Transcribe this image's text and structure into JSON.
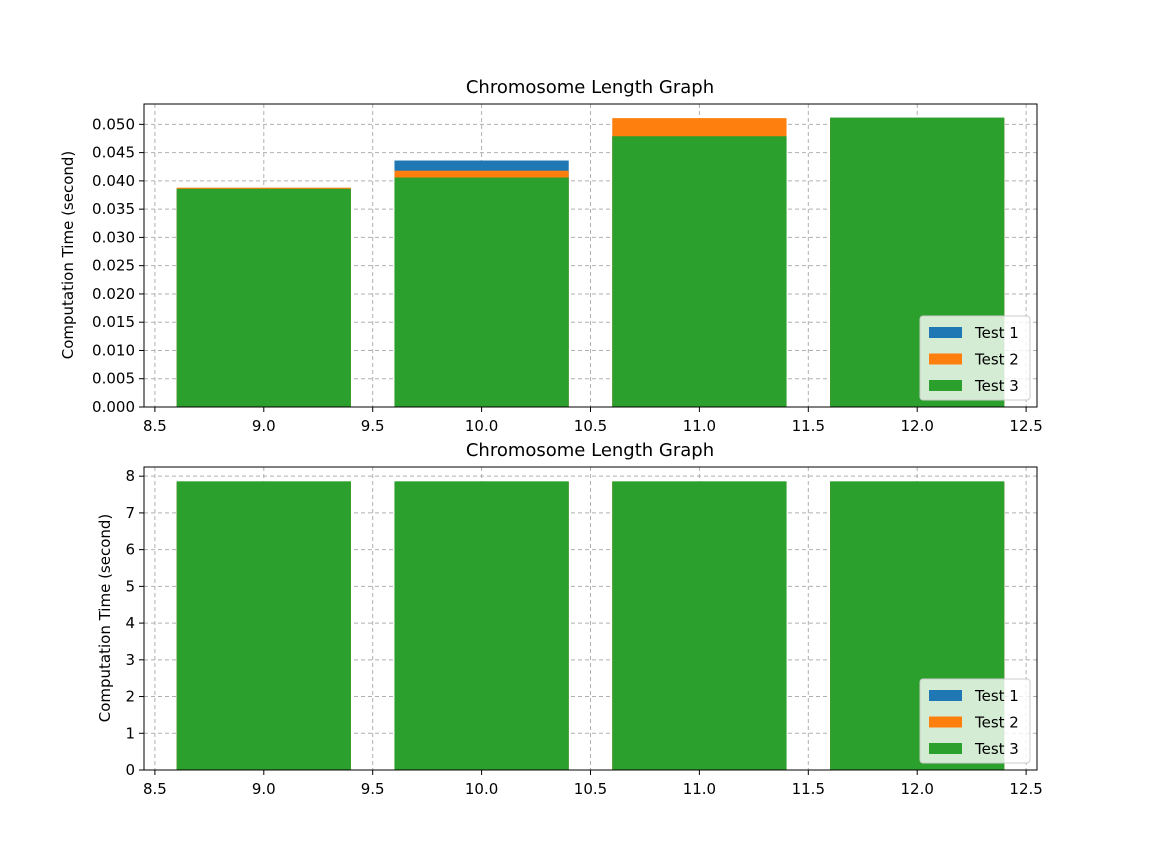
{
  "colors": {
    "test1": "#1f77b4",
    "test2": "#ff7f0e",
    "test3": "#2ca02c",
    "grid": "#b0b0b0"
  },
  "chart_data": [
    {
      "type": "bar",
      "title": "Chromosome Length Graph",
      "xlabel": "",
      "ylabel": "Computation Time (second)",
      "x": [
        9,
        10,
        11,
        12
      ],
      "bar_width": 0.8,
      "xlim": [
        8.45,
        12.55
      ],
      "ylim": [
        0,
        0.0536
      ],
      "xticks": [
        8.5,
        9.0,
        9.5,
        10.0,
        10.5,
        11.0,
        11.5,
        12.0,
        12.5
      ],
      "xtick_labels": [
        "8.5",
        "9.0",
        "9.5",
        "10.0",
        "10.5",
        "11.0",
        "11.5",
        "12.0",
        "12.5"
      ],
      "yticks": [
        0,
        0.005,
        0.01,
        0.015,
        0.02,
        0.025,
        0.03,
        0.035,
        0.04,
        0.045,
        0.05
      ],
      "ytick_labels": [
        "0.000",
        "0.005",
        "0.010",
        "0.015",
        "0.020",
        "0.025",
        "0.030",
        "0.035",
        "0.040",
        "0.045",
        "0.050"
      ],
      "grid": true,
      "legend_position": "lower-right",
      "overlapping": true,
      "series": [
        {
          "name": "Test 1",
          "color": "#1f77b4",
          "values": [
            0.0385,
            0.0436,
            0.048,
            0.051
          ]
        },
        {
          "name": "Test 2",
          "color": "#ff7f0e",
          "values": [
            0.0388,
            0.0418,
            0.0511,
            0.051
          ]
        },
        {
          "name": "Test 3",
          "color": "#2ca02c",
          "values": [
            0.0386,
            0.0406,
            0.0479,
            0.0512
          ]
        }
      ]
    },
    {
      "type": "bar",
      "title": "Chromosome Length Graph",
      "xlabel": "",
      "ylabel": "Computation Time (second)",
      "x": [
        9,
        10,
        11,
        12
      ],
      "bar_width": 0.8,
      "xlim": [
        8.45,
        12.55
      ],
      "ylim": [
        0,
        8.25
      ],
      "xticks": [
        8.5,
        9.0,
        9.5,
        10.0,
        10.5,
        11.0,
        11.5,
        12.0,
        12.5
      ],
      "xtick_labels": [
        "8.5",
        "9.0",
        "9.5",
        "10.0",
        "10.5",
        "11.0",
        "11.5",
        "12.0",
        "12.5"
      ],
      "yticks": [
        0,
        1,
        2,
        3,
        4,
        5,
        6,
        7,
        8
      ],
      "ytick_labels": [
        "0",
        "1",
        "2",
        "3",
        "4",
        "5",
        "6",
        "7",
        "8"
      ],
      "grid": true,
      "legend_position": "lower-right",
      "overlapping": true,
      "series": [
        {
          "name": "Test 1",
          "color": "#1f77b4",
          "values": [
            7.84,
            7.84,
            7.84,
            7.84
          ]
        },
        {
          "name": "Test 2",
          "color": "#ff7f0e",
          "values": [
            7.84,
            7.84,
            7.84,
            7.84
          ]
        },
        {
          "name": "Test 3",
          "color": "#2ca02c",
          "values": [
            7.86,
            7.86,
            7.86,
            7.86
          ]
        }
      ]
    }
  ]
}
